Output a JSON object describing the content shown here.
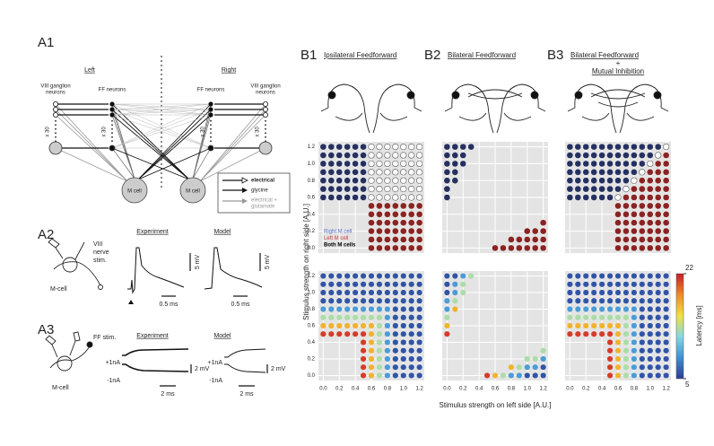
{
  "a1": {
    "label": "A1",
    "left": "Left",
    "right": "Right",
    "ganglion": [
      "VIII ganglion",
      "neurons"
    ],
    "ff": "FF neurons",
    "x30": "x 30",
    "mcell": "M cell",
    "legend": [
      "electrical",
      "glycine",
      "electrical +",
      "glutamate"
    ]
  },
  "a2": {
    "label": "A2",
    "stim": [
      "VIII",
      "nerve",
      "stim."
    ],
    "cell": "M-cell",
    "experiment": "Experiment",
    "model": "Model",
    "v_scale": "5 mV",
    "t_scale": "0.5 ms"
  },
  "a3": {
    "label": "A3",
    "stim": "FF stim.",
    "cell": "M-cell",
    "experiment": "Experiment",
    "model": "Model",
    "plus": "+1nA",
    "minus": "-1nA",
    "v_scale": "2 mV",
    "t_scale": "2 ms"
  },
  "b": {
    "xlabel": "Stimulus strength on left side [A.U.]",
    "ylabel": "Stimulus strength on right side [A.U.]",
    "levels": [
      0,
      0.1,
      0.2,
      0.3,
      0.4,
      0.5,
      0.6,
      0.7,
      0.8,
      0.9,
      1,
      1.1,
      1.2
    ],
    "lim": [
      -0.06,
      1.26
    ],
    "ticks": [
      {
        "value": 0,
        "label": "0.0"
      },
      {
        "value": 0.2,
        "label": "0.2"
      },
      {
        "value": 0.4,
        "label": "0.4"
      },
      {
        "value": 0.6,
        "label": "0.6"
      },
      {
        "value": 0.8,
        "label": "0.8"
      },
      {
        "value": 1,
        "label": "1.0"
      },
      {
        "value": 1.2,
        "label": "1.2"
      }
    ],
    "legend": [
      {
        "code": "R",
        "label": "Right M cell",
        "color": "#26305f"
      },
      {
        "code": "L",
        "label": "Left M cell",
        "color": "#8a2323"
      },
      {
        "code": "B",
        "label": "Both M cells",
        "color": "#ffffff"
      }
    ],
    "colorbar": {
      "min": 5,
      "max": 22,
      "label": "Latency [ms]",
      "colors": [
        "#2c3c94",
        "#3f8fd2",
        "#86d8e4",
        "#f1e23b",
        "#f08a25",
        "#c81b2c"
      ]
    },
    "panels": [
      {
        "label": "B1",
        "title": [
          "Ipsilateral Feedforward"
        ],
        "response": [
          "------LLLLLLL",
          "------LLLLLLL",
          "------LLLLLLL",
          "------LLLLLLL",
          "------LLLLLLL",
          "------LLLLLLL",
          "RRRRRRBBBBBBB",
          "RRRRRRBBBBBBB",
          "RRRRRRBBBBBBB",
          "RRRRRRBBBBBBB",
          "RRRRRRBBBBBBB",
          "RRRRRRBBBBBBB",
          "RRRRRRBBBBBBB"
        ],
        "latency": [
          [
            null,
            null,
            null,
            null,
            null,
            21,
            17,
            13,
            9,
            6,
            6,
            6,
            6
          ],
          [
            null,
            null,
            null,
            null,
            null,
            21,
            17,
            13,
            9,
            6,
            6,
            6,
            6
          ],
          [
            null,
            null,
            null,
            null,
            null,
            21,
            17,
            13,
            9,
            6,
            6,
            6,
            6
          ],
          [
            null,
            null,
            null,
            null,
            null,
            21,
            17,
            13,
            9,
            6,
            6,
            6,
            6
          ],
          [
            null,
            null,
            null,
            null,
            null,
            21,
            17,
            13,
            9,
            6,
            6,
            6,
            6
          ],
          [
            21,
            21,
            21,
            21,
            21,
            21,
            17,
            13,
            9,
            6,
            6,
            6,
            6
          ],
          [
            17,
            17,
            17,
            17,
            17,
            17,
            17,
            13,
            9,
            6,
            6,
            6,
            6
          ],
          [
            13,
            13,
            13,
            13,
            13,
            13,
            13,
            13,
            9,
            6,
            6,
            6,
            6
          ],
          [
            9,
            9,
            9,
            9,
            9,
            9,
            9,
            9,
            9,
            6,
            6,
            6,
            6
          ],
          [
            6,
            6,
            6,
            6,
            6,
            6,
            6,
            6,
            6,
            6,
            6,
            6,
            6
          ],
          [
            6,
            6,
            6,
            6,
            6,
            6,
            6,
            6,
            6,
            6,
            6,
            6,
            6
          ],
          [
            6,
            6,
            6,
            6,
            6,
            6,
            6,
            6,
            6,
            6,
            6,
            6,
            6
          ],
          [
            6,
            6,
            6,
            6,
            6,
            6,
            6,
            6,
            6,
            6,
            6,
            6,
            6
          ]
        ]
      },
      {
        "label": "B2",
        "title": [
          "Bilateral Feedforward"
        ],
        "response": [
          "------LLLLLLL",
          "--------LLLLL",
          "----------LLL",
          "------------L",
          "-------------",
          "-------------",
          "R------------",
          "R------------",
          "RR-----------",
          "RR-----------",
          "RRR----------",
          "RRR----------",
          "RRRR---------"
        ],
        "latency": [
          [
            null,
            null,
            null,
            null,
            null,
            21,
            17,
            13,
            9,
            9,
            6,
            6,
            6
          ],
          [
            null,
            null,
            null,
            null,
            null,
            null,
            null,
            null,
            17,
            13,
            9,
            9,
            6
          ],
          [
            null,
            null,
            null,
            null,
            null,
            null,
            null,
            null,
            null,
            null,
            13,
            13,
            9
          ],
          [
            null,
            null,
            null,
            null,
            null,
            null,
            null,
            null,
            null,
            null,
            null,
            null,
            13
          ],
          [
            null,
            null,
            null,
            null,
            null,
            null,
            null,
            null,
            null,
            null,
            null,
            null,
            null
          ],
          [
            21,
            null,
            null,
            null,
            null,
            null,
            null,
            null,
            null,
            null,
            null,
            null,
            null
          ],
          [
            17,
            null,
            null,
            null,
            null,
            null,
            null,
            null,
            null,
            null,
            null,
            null,
            null
          ],
          [
            13,
            null,
            null,
            null,
            null,
            null,
            null,
            null,
            null,
            null,
            null,
            null,
            null
          ],
          [
            9,
            17,
            null,
            null,
            null,
            null,
            null,
            null,
            null,
            null,
            null,
            null,
            null
          ],
          [
            9,
            13,
            null,
            null,
            null,
            null,
            null,
            null,
            null,
            null,
            null,
            null,
            null
          ],
          [
            6,
            9,
            13,
            null,
            null,
            null,
            null,
            null,
            null,
            null,
            null,
            null,
            null
          ],
          [
            6,
            9,
            13,
            null,
            null,
            null,
            null,
            null,
            null,
            null,
            null,
            null,
            null
          ],
          [
            6,
            6,
            9,
            13,
            null,
            null,
            null,
            null,
            null,
            null,
            null,
            null,
            null
          ]
        ]
      },
      {
        "label": "B3",
        "title": [
          "Bilateral Feedforward",
          "+",
          "Mutual Inhibition"
        ],
        "response": [
          "------LLLLLLL",
          "------LLLLLLL",
          "------LLLLLLL",
          "------LLLLLLL",
          "------LLLLLLL",
          "------LLLLLLL",
          "RRRRRRBLLLLLL",
          "RRRRRRRBLLLLL",
          "RRRRRRRRBLLLL",
          "RRRRRRRRRBLLL",
          "RRRRRRRRRRBLL",
          "RRRRRRRRRRRBL",
          "RRRRRRRRRRRRB"
        ],
        "latency": [
          [
            null,
            null,
            null,
            null,
            null,
            21,
            17,
            13,
            9,
            6,
            6,
            6,
            6
          ],
          [
            null,
            null,
            null,
            null,
            null,
            21,
            17,
            13,
            9,
            6,
            6,
            6,
            6
          ],
          [
            null,
            null,
            null,
            null,
            null,
            21,
            17,
            13,
            9,
            6,
            6,
            6,
            6
          ],
          [
            null,
            null,
            null,
            null,
            null,
            21,
            17,
            13,
            9,
            6,
            6,
            6,
            6
          ],
          [
            null,
            null,
            null,
            null,
            null,
            21,
            17,
            13,
            9,
            6,
            6,
            6,
            6
          ],
          [
            21,
            21,
            21,
            21,
            21,
            21,
            17,
            13,
            9,
            6,
            6,
            6,
            6
          ],
          [
            17,
            17,
            17,
            17,
            17,
            17,
            17,
            13,
            9,
            6,
            6,
            6,
            6
          ],
          [
            13,
            13,
            13,
            13,
            13,
            13,
            13,
            13,
            9,
            6,
            6,
            6,
            6
          ],
          [
            9,
            9,
            9,
            9,
            9,
            9,
            9,
            9,
            9,
            6,
            6,
            6,
            6
          ],
          [
            6,
            6,
            6,
            6,
            6,
            6,
            6,
            6,
            6,
            6,
            6,
            6,
            6
          ],
          [
            6,
            6,
            6,
            6,
            6,
            6,
            6,
            6,
            6,
            6,
            6,
            6,
            6
          ],
          [
            6,
            6,
            6,
            6,
            6,
            6,
            6,
            6,
            6,
            6,
            6,
            6,
            6
          ],
          [
            6,
            6,
            6,
            6,
            6,
            6,
            6,
            6,
            6,
            6,
            6,
            6,
            6
          ]
        ]
      }
    ]
  }
}
